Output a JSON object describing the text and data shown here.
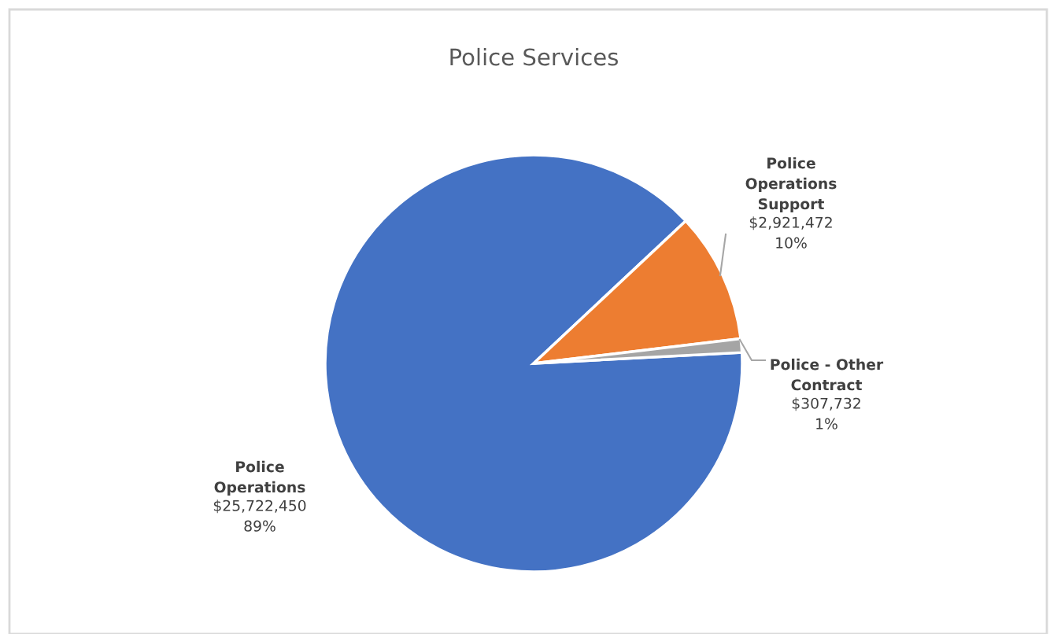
{
  "chart_data": {
    "type": "pie",
    "title": "Police Services",
    "categories": [
      "Police\nOperations",
      "Police\nOperations\nSupport",
      "Police - Other\nContract"
    ],
    "values": [
      25722450,
      2921472,
      307732
    ],
    "colors": [
      "#4472c4",
      "#ed7d31",
      "#a5a5a5"
    ],
    "value_labels": [
      "$25,722,450\n89%",
      "$2,921,472\n10%",
      "$307,732\n1%"
    ]
  }
}
